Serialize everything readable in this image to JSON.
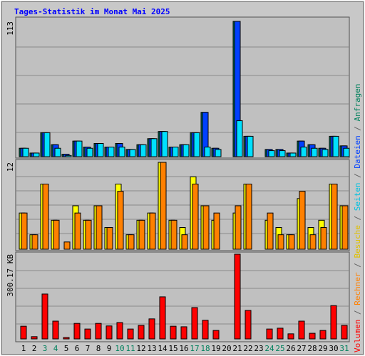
{
  "chart_data": [
    {
      "type": "bar",
      "title": "Tages-Statistik im Monat Mai 2025",
      "ylim": [
        0,
        113
      ],
      "yticks": [
        113
      ],
      "series": [
        {
          "name": "Anfragen",
          "color": "#00805c",
          "values": [
            7,
            3,
            20,
            10,
            2,
            13,
            8,
            11,
            8,
            11,
            6,
            10,
            15,
            21,
            8,
            10,
            20,
            37,
            7,
            0,
            113,
            17,
            0,
            6,
            6,
            3,
            13,
            10,
            7,
            17,
            9
          ]
        },
        {
          "name": "Dateien",
          "color": "#0040ff",
          "values": [
            7,
            3,
            20,
            10,
            2,
            13,
            8,
            11,
            8,
            11,
            6,
            10,
            15,
            21,
            8,
            10,
            20,
            37,
            7,
            0,
            113,
            17,
            0,
            6,
            6,
            3,
            13,
            10,
            7,
            17,
            9
          ]
        },
        {
          "name": "Seiten",
          "color": "#00e0ff",
          "values": [
            7,
            3,
            20,
            7,
            1,
            13,
            7,
            11,
            8,
            8,
            6,
            10,
            15,
            21,
            8,
            10,
            20,
            8,
            6,
            0,
            30,
            17,
            0,
            5,
            5,
            3,
            8,
            7,
            6,
            17,
            7
          ]
        }
      ]
    },
    {
      "type": "bar",
      "ylim": [
        0,
        12
      ],
      "yticks": [
        12
      ],
      "series": [
        {
          "name": "Besuche",
          "color": "#ffff00",
          "values": [
            5,
            2,
            9,
            4,
            0,
            6,
            4,
            6,
            3,
            9,
            2,
            4,
            5,
            12,
            4,
            3,
            10,
            6,
            4,
            0,
            5,
            9,
            0,
            4,
            3,
            2,
            7,
            3,
            4,
            9,
            6
          ]
        },
        {
          "name": "Rechner",
          "color": "#ff8000",
          "values": [
            5,
            2,
            9,
            4,
            1,
            5,
            4,
            6,
            3,
            8,
            2,
            4,
            5,
            12,
            4,
            2,
            9,
            6,
            5,
            0,
            6,
            9,
            0,
            5,
            2,
            2,
            8,
            2,
            3,
            9,
            6
          ]
        }
      ]
    },
    {
      "type": "bar",
      "ylim": [
        0,
        300.17
      ],
      "yticks": [
        {
          "value": 300.17,
          "label": "300.17 KB"
        }
      ],
      "categories": [
        "1",
        "2",
        "3",
        "4",
        "5",
        "6",
        "7",
        "8",
        "9",
        "10",
        "11",
        "12",
        "13",
        "14",
        "15",
        "16",
        "17",
        "18",
        "19",
        "20",
        "21",
        "22",
        "23",
        "24",
        "25",
        "26",
        "27",
        "28",
        "29",
        "30",
        "31"
      ],
      "category_colors": [
        "#000000",
        "#000000",
        "#00805c",
        "#00805c",
        "#000000",
        "#000000",
        "#000000",
        "#000000",
        "#000000",
        "#00805c",
        "#00805c",
        "#000000",
        "#000000",
        "#000000",
        "#000000",
        "#000000",
        "#00805c",
        "#00805c",
        "#000000",
        "#000000",
        "#000000",
        "#000000",
        "#000000",
        "#00805c",
        "#00805c",
        "#000000",
        "#000000",
        "#000000",
        "#000000",
        "#000000",
        "#00805c"
      ],
      "legend_separator": "/",
      "series": [
        {
          "name": "Volumen",
          "color": "#ff0000",
          "values": [
            45,
            8,
            159,
            63,
            5,
            55,
            35,
            55,
            46,
            58,
            35,
            48,
            71,
            149,
            45,
            43,
            111,
            66,
            30,
            0,
            300.17,
            101,
            0,
            35,
            38,
            18,
            63,
            20,
            30,
            118,
            48
          ]
        }
      ]
    }
  ]
}
